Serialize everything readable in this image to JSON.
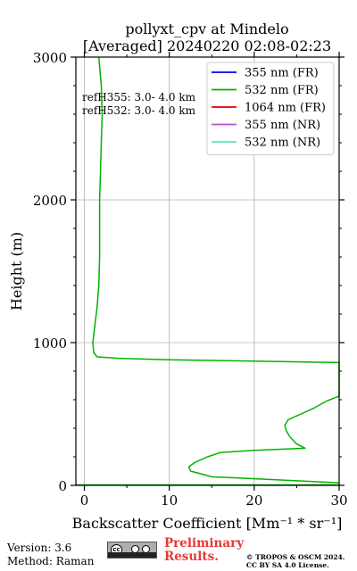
{
  "chart_data": {
    "type": "line",
    "title": "pollyxt_cpv at Mindelo",
    "subtitle": "[Averaged] 20240220 02:08-02:23",
    "xlabel": "Backscatter Coefficient [Mm⁻¹ * sr⁻¹]",
    "ylabel": "Height (m)",
    "xlim": [
      -1,
      30
    ],
    "ylim": [
      0,
      3000
    ],
    "xticks": [
      "0",
      "10",
      "20",
      "30"
    ],
    "yticks": [
      "0",
      "1000",
      "2000",
      "3000"
    ],
    "grid": true,
    "legend_position": "top-right",
    "annotations": [
      "refH355:  3.0- 4.0 km",
      "refH532:  3.0- 4.0 km"
    ],
    "series": [
      {
        "name": "355 nm (FR)",
        "color": "#0000ff",
        "points": []
      },
      {
        "name": "532 nm (FR)",
        "color": "#00b300",
        "points": [
          [
            30,
            18
          ],
          [
            15,
            60
          ],
          [
            12.5,
            100
          ],
          [
            12.3,
            130
          ],
          [
            13,
            160
          ],
          [
            14.5,
            200
          ],
          [
            16,
            230
          ],
          [
            20,
            245
          ],
          [
            26,
            260
          ],
          [
            25,
            290
          ],
          [
            24.2,
            340
          ],
          [
            23.8,
            380
          ],
          [
            23.6,
            420
          ],
          [
            24,
            460
          ],
          [
            25.5,
            500
          ],
          [
            27,
            540
          ],
          [
            28.5,
            590
          ],
          [
            30,
            625
          ],
          [
            30,
            860
          ],
          [
            20,
            870
          ],
          [
            10,
            880
          ],
          [
            4,
            890
          ],
          [
            1.5,
            900
          ],
          [
            1.1,
            930
          ],
          [
            1.0,
            1000
          ],
          [
            1.2,
            1100
          ],
          [
            1.5,
            1250
          ],
          [
            1.7,
            1400
          ],
          [
            1.8,
            1600
          ],
          [
            1.8,
            1800
          ],
          [
            1.8,
            2000
          ],
          [
            1.9,
            2200
          ],
          [
            2.0,
            2400
          ],
          [
            2.1,
            2600
          ],
          [
            2.0,
            2800
          ],
          [
            1.7,
            3000
          ]
        ]
      },
      {
        "name": "1064 nm (FR)",
        "color": "#e00000",
        "points": []
      },
      {
        "name": "355 nm (NR)",
        "color": "#b44fd6",
        "points": []
      },
      {
        "name": "532 nm (NR)",
        "color": "#55e8c8",
        "points": []
      }
    ]
  },
  "footer": {
    "version": "Version: 3.6",
    "method": "Method: Raman",
    "preliminary_line1": "Preliminary",
    "preliminary_line2": "Results.",
    "copyright_line1": "© TROPOS & OSCM 2024.",
    "copyright_line2": "CC BY SA 4.0 License.",
    "license_badge_text": "cc"
  }
}
